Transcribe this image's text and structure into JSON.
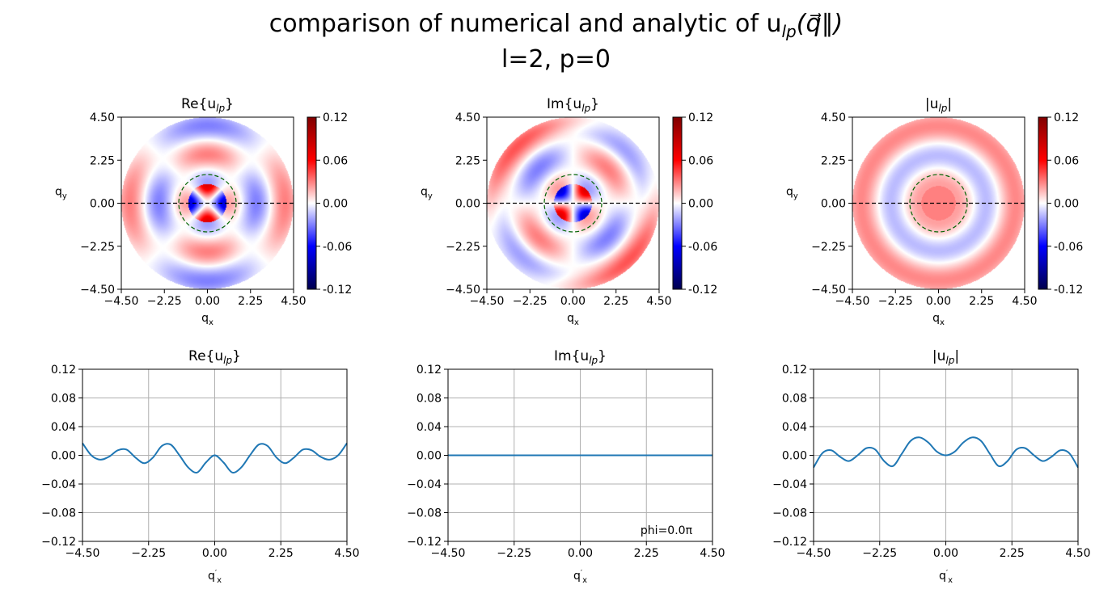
{
  "figure": {
    "title_line1": "comparison of numerical and analytic of u",
    "title_sub": "lp",
    "title_vec": "(q⃗∥)",
    "title_line2": "l=2, p=0"
  },
  "chart_data": [
    {
      "type": "heatmap",
      "title": "Re{u",
      "title_sub": "lp",
      "title_close": "}",
      "xlabel": "q",
      "xlabel_sub": "x",
      "ylabel": "q",
      "ylabel_sub": "y",
      "xlim": [
        -4.5,
        4.5
      ],
      "ylim": [
        -4.5,
        4.5
      ],
      "xticks": [
        "−4.50",
        "−2.25",
        "0.00",
        "2.25",
        "4.50"
      ],
      "yticks": [
        "−4.50",
        "−2.25",
        "0.00",
        "2.25",
        "4.50"
      ],
      "colorbar": {
        "colormap": "seismic",
        "range": [
          -0.12,
          0.12
        ],
        "ticks": [
          "-0.12",
          "-0.06",
          "0.00",
          "0.06",
          "0.12"
        ]
      },
      "mode": "re",
      "overlays": [
        "dashed horizontal line at q_y=0 (black)",
        "dashed circle radius 1.5 (green)"
      ]
    },
    {
      "type": "heatmap",
      "title": "Im{u",
      "title_sub": "lp",
      "title_close": "}",
      "xlabel": "q",
      "xlabel_sub": "x",
      "ylabel": "q",
      "ylabel_sub": "y",
      "xlim": [
        -4.5,
        4.5
      ],
      "ylim": [
        -4.5,
        4.5
      ],
      "xticks": [
        "−4.50",
        "−2.25",
        "0.00",
        "2.25",
        "4.50"
      ],
      "yticks": [
        "−4.50",
        "−2.25",
        "0.00",
        "2.25",
        "4.50"
      ],
      "colorbar": {
        "colormap": "seismic",
        "range": [
          -0.12,
          0.12
        ],
        "ticks": [
          "-0.12",
          "-0.06",
          "0.00",
          "0.06",
          "0.12"
        ]
      },
      "mode": "im",
      "overlays": [
        "dashed horizontal line at q_y=0 (black)",
        "dashed circle radius 1.5 (green)"
      ]
    },
    {
      "type": "heatmap",
      "title": "|u",
      "title_sub": "lp",
      "title_close": "|",
      "xlabel": "q",
      "xlabel_sub": "x",
      "ylabel": "q",
      "ylabel_sub": "y",
      "xlim": [
        -4.5,
        4.5
      ],
      "ylim": [
        -4.5,
        4.5
      ],
      "xticks": [
        "−4.50",
        "−2.25",
        "0.00",
        "2.25",
        "4.50"
      ],
      "yticks": [
        "−4.50",
        "−2.25",
        "0.00",
        "2.25",
        "4.50"
      ],
      "colorbar": {
        "colormap": "seismic",
        "range": [
          -0.12,
          0.12
        ],
        "ticks": [
          "-0.12",
          "-0.06",
          "0.00",
          "0.06",
          "0.12"
        ]
      },
      "mode": "abs",
      "overlays": [
        "dashed horizontal line at q_y=0 (black)",
        "dashed circle radius 1.5 (green)"
      ]
    },
    {
      "type": "line",
      "title": "Re{u",
      "title_sub": "lp",
      "title_close": "}",
      "xlabel": "q",
      "xlabel_sub": "x",
      "xlabel_prime": "′",
      "xlim": [
        -4.5,
        4.5
      ],
      "ylim": [
        -0.12,
        0.12
      ],
      "xticks": [
        "−4.50",
        "−2.25",
        "0.00",
        "2.25",
        "4.50"
      ],
      "yticks": [
        "−0.12",
        "−0.08",
        "−0.04",
        "0.00",
        "0.04",
        "0.08",
        "0.12"
      ],
      "grid": true,
      "color": "#1f77b4",
      "series": [
        {
          "x": [
            -4.5,
            -4.2,
            -3.9,
            -3.6,
            -3.3,
            -3.0,
            -2.7,
            -2.4,
            -2.1,
            -1.8,
            -1.5,
            -1.2,
            -0.9,
            -0.6,
            -0.3,
            0.0,
            0.3,
            0.6,
            0.9,
            1.2,
            1.5,
            1.8,
            2.1,
            2.4,
            2.7,
            3.0,
            3.3,
            3.6,
            3.9,
            4.2,
            4.5
          ],
          "y": [
            0.017,
            0.0,
            -0.006,
            -0.002,
            0.007,
            0.008,
            -0.003,
            -0.011,
            -0.003,
            0.013,
            0.015,
            0.0,
            -0.017,
            -0.024,
            -0.01,
            0.0,
            -0.01,
            -0.024,
            -0.017,
            0.0,
            0.015,
            0.013,
            -0.003,
            -0.011,
            -0.003,
            0.008,
            0.007,
            -0.002,
            -0.006,
            0.0,
            0.017
          ]
        }
      ]
    },
    {
      "type": "line",
      "title": "Im{u",
      "title_sub": "lp",
      "title_close": "}",
      "xlabel": "q",
      "xlabel_sub": "x",
      "xlabel_prime": "′",
      "xlim": [
        -4.5,
        4.5
      ],
      "ylim": [
        -0.12,
        0.12
      ],
      "xticks": [
        "−4.50",
        "−2.25",
        "0.00",
        "2.25",
        "4.50"
      ],
      "yticks": [
        "−0.12",
        "−0.08",
        "−0.04",
        "0.00",
        "0.04",
        "0.08",
        "0.12"
      ],
      "grid": true,
      "color": "#1f77b4",
      "annotation": "phi=0.0π",
      "series": [
        {
          "x": [
            -4.5,
            4.5
          ],
          "y": [
            0.0,
            0.0
          ]
        }
      ]
    },
    {
      "type": "line",
      "title": "|u",
      "title_sub": "lp",
      "title_close": "|",
      "xlabel": "q",
      "xlabel_sub": "x",
      "xlabel_prime": "′",
      "xlim": [
        -4.5,
        4.5
      ],
      "ylim": [
        -0.12,
        0.12
      ],
      "xticks": [
        "−4.50",
        "−2.25",
        "0.00",
        "2.25",
        "4.50"
      ],
      "yticks": [
        "−0.12",
        "−0.08",
        "−0.04",
        "0.00",
        "0.04",
        "0.08",
        "0.12"
      ],
      "grid": true,
      "color": "#1f77b4",
      "series": [
        {
          "x": [
            -4.5,
            -4.2,
            -3.9,
            -3.6,
            -3.3,
            -3.0,
            -2.7,
            -2.4,
            -2.1,
            -1.8,
            -1.5,
            -1.2,
            -0.9,
            -0.6,
            -0.3,
            0.0,
            0.3,
            0.6,
            0.9,
            1.2,
            1.5,
            1.8,
            2.1,
            2.4,
            2.7,
            3.0,
            3.3,
            3.6,
            3.9,
            4.2,
            4.5
          ],
          "y": [
            -0.017,
            0.003,
            0.007,
            -0.002,
            -0.008,
            0.0,
            0.01,
            0.008,
            -0.008,
            -0.015,
            0.002,
            0.02,
            0.025,
            0.018,
            0.005,
            0.0,
            0.005,
            0.018,
            0.025,
            0.02,
            0.002,
            -0.015,
            -0.008,
            0.008,
            0.01,
            0.0,
            -0.008,
            -0.002,
            0.007,
            0.003,
            -0.017
          ]
        }
      ]
    }
  ]
}
